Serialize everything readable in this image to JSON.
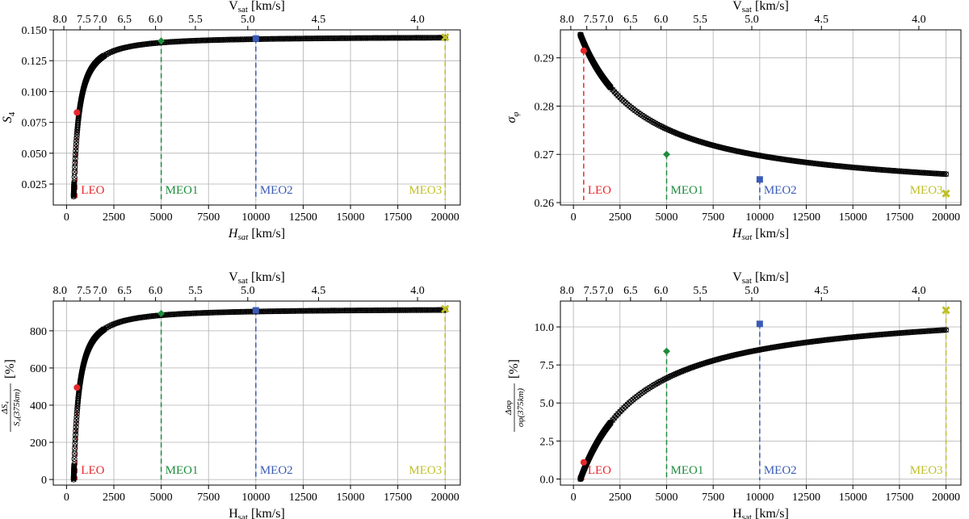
{
  "chart_data": [
    {
      "type": "scatter",
      "panel": "top-left",
      "title": "",
      "xlabel": "H_sat [km/s]",
      "ylabel": "S_4",
      "top_axis_label": "V_sat [km/s]",
      "xlim": [
        -700,
        20800
      ],
      "ylim": [
        0.008,
        0.15
      ],
      "x_ticks": [
        0,
        2500,
        5000,
        7500,
        10000,
        12500,
        15000,
        17500,
        20000
      ],
      "y_ticks": [
        0.025,
        0.05,
        0.075,
        0.1,
        0.125,
        0.15
      ],
      "y_tick_labels": [
        "0.025",
        "0.050",
        "0.075",
        "0.100",
        "0.125",
        "0.150"
      ],
      "top_ticks": [
        8.0,
        7.5,
        7.0,
        6.5,
        6.0,
        5.5,
        5.0,
        4.5,
        4.0
      ],
      "top_tick_labels": [
        "8.0",
        "7.5",
        "7.0",
        "6.5",
        "6.0",
        "5.5",
        "5.0",
        "4.5",
        "4.0"
      ],
      "curve": {
        "kind": "saturating",
        "x0": 375,
        "y0": 0.015,
        "yinf": 0.1445,
        "scale": 360,
        "power": 1.25
      },
      "markers": [
        {
          "name": "LEO",
          "x": 550,
          "y": 0.083,
          "color": "#e8282b"
        },
        {
          "name": "MEO1",
          "x": 5000,
          "y": 0.141,
          "color": "#1e8c3c"
        },
        {
          "name": "MEO2",
          "x": 10000,
          "y": 0.143,
          "color": "#3a5bb5"
        },
        {
          "name": "MEO3",
          "x": 20000,
          "y": 0.144,
          "color": "#bfbf2a"
        }
      ]
    },
    {
      "type": "scatter",
      "panel": "top-right",
      "title": "",
      "xlabel": "H_sat [km/s]",
      "ylabel": "σ_φ",
      "top_axis_label": "V_sat [km/s]",
      "xlim": [
        -700,
        20800
      ],
      "ylim": [
        0.2595,
        0.2958
      ],
      "x_ticks": [
        0,
        2500,
        5000,
        7500,
        10000,
        12500,
        15000,
        17500,
        20000
      ],
      "y_ticks": [
        0.26,
        0.27,
        0.28,
        0.29
      ],
      "y_tick_labels": [
        "0.26",
        "0.27",
        "0.28",
        "0.29"
      ],
      "top_ticks": [
        8.0,
        7.5,
        7.0,
        6.5,
        6.0,
        5.5,
        5.0,
        4.5,
        4.0
      ],
      "top_tick_labels": [
        "8.0",
        "7.5",
        "7.0",
        "6.5",
        "6.0",
        "5.5",
        "5.0",
        "4.5",
        "4.0"
      ],
      "curve": {
        "kind": "decay",
        "x0": 375,
        "y0": 0.2948,
        "yinf": 0.2609,
        "scale": 3400,
        "power": 1.0
      },
      "markers": [
        {
          "name": "LEO",
          "x": 550,
          "y": 0.2915,
          "color": "#e8282b"
        },
        {
          "name": "MEO1",
          "x": 5000,
          "y": 0.27,
          "color": "#1e8c3c"
        },
        {
          "name": "MEO2",
          "x": 10000,
          "y": 0.2648,
          "color": "#3a5bb5"
        },
        {
          "name": "MEO3",
          "x": 20000,
          "y": 0.2619,
          "color": "#bfbf2a"
        }
      ]
    },
    {
      "type": "scatter",
      "panel": "bottom-left",
      "title": "",
      "xlabel": "H_sat [km/s]",
      "ylabel": "ΔS_4 / S_4(375km) [%]",
      "top_axis_label": "V_sat [km/s]",
      "xlim": [
        -700,
        20800
      ],
      "ylim": [
        -30,
        960
      ],
      "x_ticks": [
        0,
        2500,
        5000,
        7500,
        10000,
        12500,
        15000,
        17500,
        20000
      ],
      "y_ticks": [
        0,
        200,
        400,
        600,
        800
      ],
      "y_tick_labels": [
        "0",
        "200",
        "400",
        "600",
        "800"
      ],
      "top_ticks": [
        8.0,
        7.5,
        7.0,
        6.5,
        6.0,
        5.5,
        5.0,
        4.5,
        4.0
      ],
      "top_tick_labels": [
        "8.0",
        "7.5",
        "7.0",
        "6.5",
        "6.0",
        "5.5",
        "5.0",
        "4.5",
        "4.0"
      ],
      "curve": {
        "kind": "saturating",
        "x0": 375,
        "y0": 0,
        "yinf": 918,
        "scale": 360,
        "power": 1.25
      },
      "markers": [
        {
          "name": "LEO",
          "x": 550,
          "y": 495,
          "color": "#e8282b"
        },
        {
          "name": "MEO1",
          "x": 5000,
          "y": 893,
          "color": "#1e8c3c"
        },
        {
          "name": "MEO2",
          "x": 10000,
          "y": 910,
          "color": "#3a5bb5"
        },
        {
          "name": "MEO3",
          "x": 20000,
          "y": 918,
          "color": "#bfbf2a"
        }
      ]
    },
    {
      "type": "scatter",
      "panel": "bottom-right",
      "title": "",
      "xlabel": "H_sat [km/s]",
      "ylabel": "Δσ_φ / σ_φ(375km) [%]",
      "top_axis_label": "V_sat [km/s]",
      "xlim": [
        -700,
        20800
      ],
      "ylim": [
        -0.4,
        11.7
      ],
      "x_ticks": [
        0,
        2500,
        5000,
        7500,
        10000,
        12500,
        15000,
        17500,
        20000
      ],
      "y_ticks": [
        0,
        2.5,
        5,
        7.5,
        10
      ],
      "y_tick_labels": [
        "0.0",
        "2.5",
        "5.0",
        "7.5",
        "10.0"
      ],
      "top_ticks": [
        8.0,
        7.5,
        7.0,
        6.5,
        6.0,
        5.5,
        5.0,
        4.5,
        4.0
      ],
      "top_tick_labels": [
        "8.0",
        "7.5",
        "7.0",
        "6.5",
        "6.0",
        "5.5",
        "5.0",
        "4.5",
        "4.0"
      ],
      "curve": {
        "kind": "saturating",
        "x0": 375,
        "y0": 0,
        "yinf": 11.5,
        "scale": 3400,
        "power": 1.0
      },
      "markers": [
        {
          "name": "LEO",
          "x": 550,
          "y": 1.1,
          "color": "#e8282b"
        },
        {
          "name": "MEO1",
          "x": 5000,
          "y": 8.4,
          "color": "#1e8c3c"
        },
        {
          "name": "MEO2",
          "x": 10000,
          "y": 10.2,
          "color": "#3a5bb5"
        },
        {
          "name": "MEO3",
          "x": 20000,
          "y": 11.1,
          "color": "#bfbf2a"
        }
      ]
    }
  ]
}
